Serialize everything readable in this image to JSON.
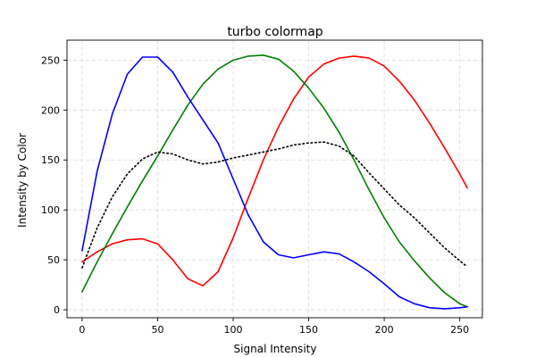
{
  "chart_data": {
    "type": "line",
    "title": "turbo colormap",
    "xlabel": "Signal Intensity",
    "ylabel": "Intensity by Color",
    "xlim": [
      -10,
      265
    ],
    "ylim": [
      -8,
      270
    ],
    "xticks": [
      0,
      50,
      100,
      150,
      200,
      250
    ],
    "yticks": [
      0,
      50,
      100,
      150,
      200,
      250
    ],
    "grid": true,
    "series": [
      {
        "color": "#ff0000",
        "style": "solid",
        "x": [
          0,
          10,
          20,
          30,
          40,
          50,
          60,
          70,
          80,
          90,
          100,
          110,
          120,
          130,
          140,
          150,
          160,
          170,
          180,
          190,
          200,
          210,
          220,
          230,
          240,
          250,
          255
        ],
        "y": [
          48,
          58,
          66,
          70,
          71,
          66,
          50,
          31,
          24,
          38,
          72,
          112,
          150,
          183,
          211,
          233,
          246,
          252,
          254,
          252,
          244,
          229,
          210,
          187,
          162,
          136,
          122
        ]
      },
      {
        "color": "#008000",
        "style": "solid",
        "x": [
          0,
          10,
          20,
          30,
          40,
          50,
          60,
          70,
          80,
          90,
          100,
          110,
          120,
          130,
          140,
          150,
          160,
          170,
          180,
          190,
          200,
          210,
          220,
          230,
          240,
          250,
          255
        ],
        "y": [
          18,
          48,
          76,
          103,
          129,
          154,
          180,
          205,
          226,
          241,
          250,
          254,
          255,
          251,
          239,
          222,
          202,
          178,
          150,
          120,
          92,
          68,
          49,
          32,
          17,
          6,
          3
        ]
      },
      {
        "color": "#0000ff",
        "style": "solid",
        "x": [
          0,
          10,
          20,
          30,
          40,
          50,
          60,
          70,
          80,
          90,
          100,
          110,
          120,
          130,
          140,
          150,
          160,
          170,
          180,
          190,
          200,
          210,
          220,
          230,
          240,
          250,
          255
        ],
        "y": [
          59,
          139,
          196,
          236,
          253,
          253,
          238,
          213,
          190,
          167,
          131,
          95,
          68,
          55,
          52,
          55,
          58,
          56,
          48,
          38,
          26,
          13,
          6,
          2,
          1,
          2,
          3
        ]
      },
      {
        "color": "#000000",
        "style": "dotted",
        "x": [
          0,
          10,
          20,
          30,
          40,
          50,
          60,
          70,
          80,
          90,
          100,
          110,
          120,
          130,
          140,
          150,
          160,
          170,
          180,
          190,
          200,
          210,
          220,
          230,
          240,
          250,
          255
        ],
        "y": [
          42,
          82,
          113,
          136,
          151,
          158,
          156,
          150,
          146,
          148,
          152,
          155,
          158,
          161,
          165,
          167,
          168,
          164,
          154,
          137,
          121,
          105,
          92,
          77,
          62,
          49,
          43
        ]
      }
    ]
  }
}
